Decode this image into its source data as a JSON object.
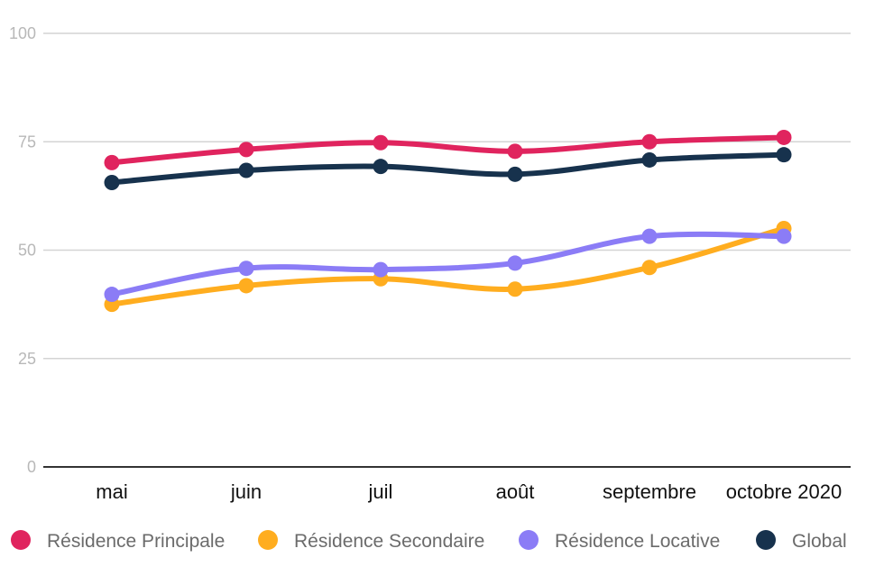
{
  "chart_data": {
    "type": "line",
    "title": "",
    "xlabel": "",
    "ylabel": "",
    "ylim": [
      0,
      100
    ],
    "yticks": [
      0,
      25,
      50,
      75,
      100
    ],
    "grid": true,
    "legend_position": "bottom",
    "categories": [
      "mai",
      "juin",
      "juil",
      "août",
      "septembre",
      "octobre 2020"
    ],
    "series": [
      {
        "name": "Résidence Principale",
        "color": "#e0245e",
        "values": [
          70.2,
          73.2,
          74.8,
          72.8,
          75.0,
          76.0
        ]
      },
      {
        "name": "Résidence Secondaire",
        "color": "#ffad1f",
        "values": [
          37.5,
          41.8,
          43.4,
          41.0,
          46.0,
          55.0
        ]
      },
      {
        "name": "Résidence Locative",
        "color": "#8b7cf6",
        "values": [
          39.8,
          45.8,
          45.5,
          47.0,
          53.2,
          53.2
        ]
      },
      {
        "name": "Global",
        "color": "#17324d",
        "values": [
          65.6,
          68.4,
          69.3,
          67.5,
          70.8,
          72.0
        ]
      }
    ]
  }
}
